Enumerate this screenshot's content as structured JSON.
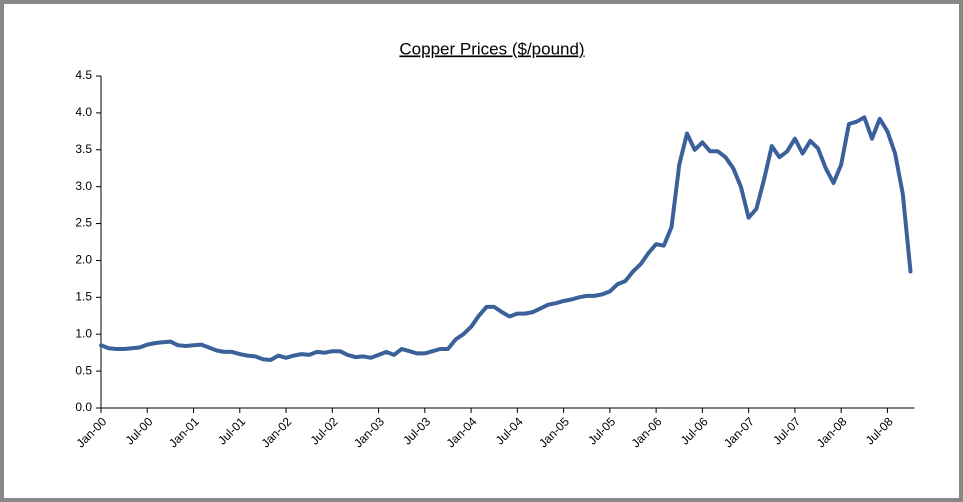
{
  "chart_data": {
    "type": "line",
    "title": "Copper Prices ($/pound)",
    "categories": [
      "Jan-00",
      null,
      null,
      null,
      null,
      null,
      "Jul-00",
      null,
      null,
      null,
      null,
      null,
      "Jan-01",
      null,
      null,
      null,
      null,
      null,
      "Jul-01",
      null,
      null,
      null,
      null,
      null,
      "Jan-02",
      null,
      null,
      null,
      null,
      null,
      "Jul-02",
      null,
      null,
      null,
      null,
      null,
      "Jan-03",
      null,
      null,
      null,
      null,
      null,
      "Jul-03",
      null,
      null,
      null,
      null,
      null,
      "Jan-04",
      null,
      null,
      null,
      null,
      null,
      "Jul-04",
      null,
      null,
      null,
      null,
      null,
      "Jan-05",
      null,
      null,
      null,
      null,
      null,
      "Jul-05",
      null,
      null,
      null,
      null,
      null,
      "Jan-06",
      null,
      null,
      null,
      null,
      null,
      "Jul-06",
      null,
      null,
      null,
      null,
      null,
      "Jan-07",
      null,
      null,
      null,
      null,
      null,
      "Jul-07",
      null,
      null,
      null,
      null,
      null,
      "Jan-08",
      null,
      null,
      null,
      null,
      null,
      "Jul-08",
      null,
      null,
      null
    ],
    "values": [
      0.85,
      0.81,
      0.8,
      0.8,
      0.81,
      0.82,
      0.86,
      0.88,
      0.89,
      0.9,
      0.85,
      0.84,
      0.85,
      0.86,
      0.82,
      0.78,
      0.76,
      0.76,
      0.73,
      0.71,
      0.7,
      0.66,
      0.65,
      0.71,
      0.68,
      0.71,
      0.73,
      0.72,
      0.76,
      0.75,
      0.77,
      0.77,
      0.72,
      0.69,
      0.7,
      0.68,
      0.72,
      0.76,
      0.72,
      0.8,
      0.77,
      0.74,
      0.74,
      0.77,
      0.8,
      0.8,
      0.93,
      1.0,
      1.1,
      1.25,
      1.37,
      1.37,
      1.3,
      1.24,
      1.28,
      1.28,
      1.3,
      1.35,
      1.4,
      1.42,
      1.45,
      1.47,
      1.5,
      1.52,
      1.52,
      1.54,
      1.58,
      1.68,
      1.72,
      1.85,
      1.95,
      2.1,
      2.22,
      2.2,
      2.45,
      3.3,
      3.72,
      3.5,
      3.6,
      3.48,
      3.48,
      3.4,
      3.25,
      3.0,
      2.58,
      2.7,
      3.1,
      3.55,
      3.4,
      3.48,
      3.65,
      3.45,
      3.62,
      3.52,
      3.25,
      3.05,
      3.3,
      3.85,
      3.88,
      3.94,
      3.65,
      3.92,
      3.75,
      3.45,
      2.9,
      1.85
    ],
    "color": "#3a6199",
    "ylim": [
      0,
      4.5
    ],
    "yticks": [
      {
        "value": 0,
        "label": "0.0"
      },
      0.5,
      {
        "value": 1,
        "label": "1.0"
      },
      1.5,
      {
        "value": 2,
        "label": "2.0"
      },
      2.5,
      {
        "value": 3,
        "label": "3.0"
      },
      3.5,
      {
        "value": 4,
        "label": "4.0"
      },
      4.5
    ]
  }
}
